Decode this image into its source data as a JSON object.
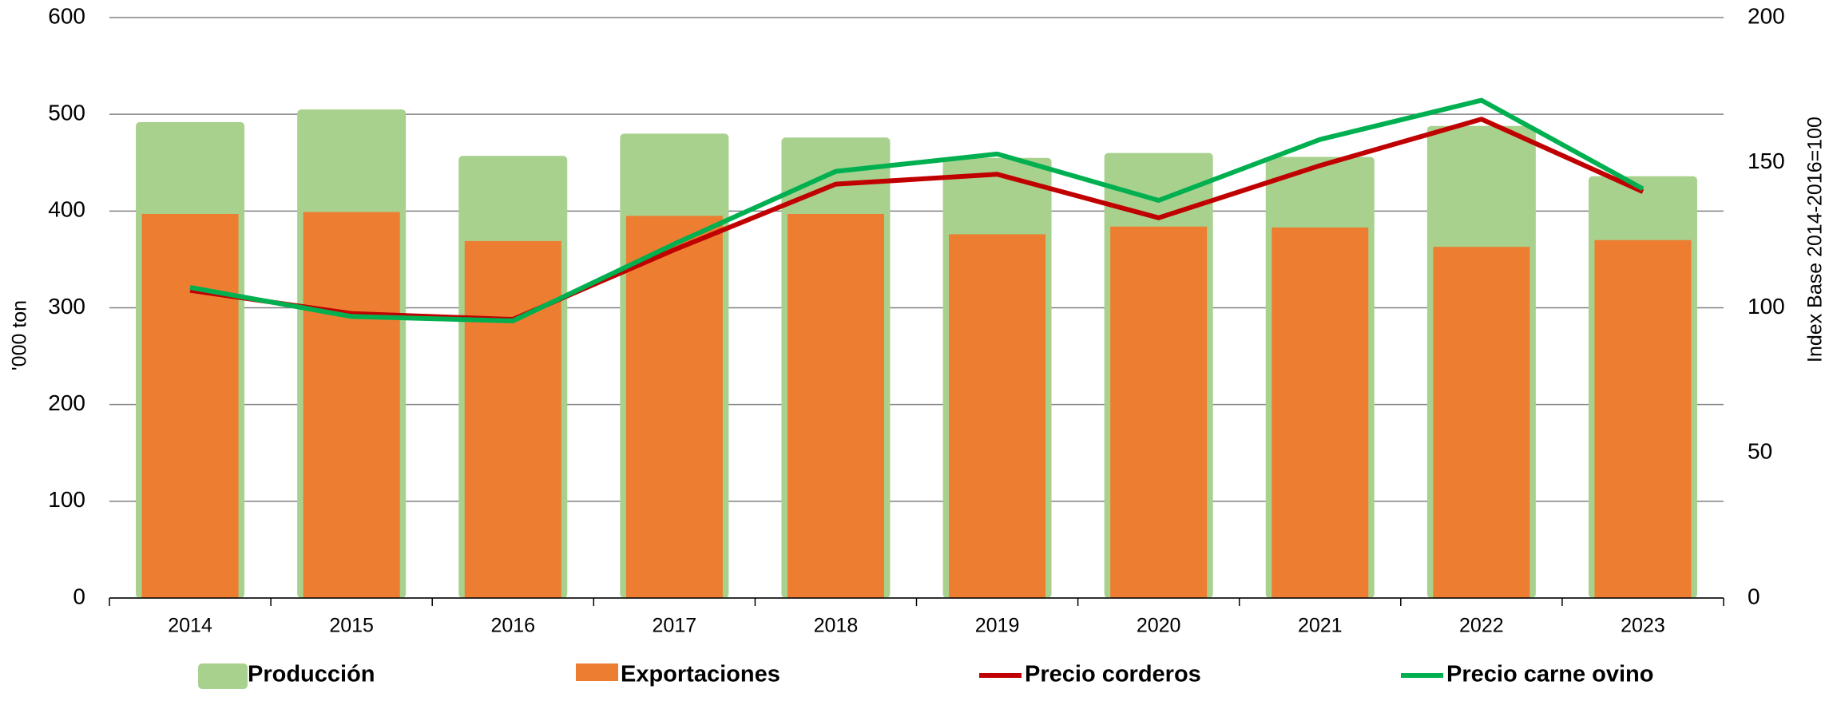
{
  "chart_data": {
    "type": "combo",
    "categories": [
      "2014",
      "2015",
      "2016",
      "2017",
      "2018",
      "2019",
      "2020",
      "2021",
      "2022",
      "2023"
    ],
    "series": [
      {
        "name": "Producción",
        "type": "bar",
        "color": "#a9d18e",
        "values": [
          492,
          505,
          457,
          480,
          476,
          455,
          460,
          456,
          488,
          436
        ]
      },
      {
        "name": "Exportaciones",
        "type": "bar",
        "color": "#ed7d31",
        "values": [
          397,
          399,
          369,
          395,
          397,
          376,
          384,
          383,
          363,
          370
        ]
      },
      {
        "name": "Precio corderos",
        "type": "line",
        "axis": "y2",
        "color": "#c00000",
        "values": [
          106,
          98,
          96,
          120,
          142.6,
          146,
          131,
          149,
          165,
          140
        ]
      },
      {
        "name": "Precio carne ovino",
        "type": "line",
        "axis": "y2",
        "color": "#00b050",
        "values": [
          107,
          97,
          95.5,
          122,
          147,
          153,
          137,
          158,
          171.5,
          141
        ]
      }
    ],
    "ylabel": "'000 ton",
    "y2label": "Index Base 2014-2016=100",
    "ylim": [
      0,
      600
    ],
    "yticks": [
      0,
      100,
      200,
      300,
      400,
      500,
      600
    ],
    "y2lim": [
      0,
      200
    ],
    "y2ticks": [
      0,
      50,
      100,
      150,
      200
    ],
    "grid": true,
    "legend": "bottom"
  }
}
